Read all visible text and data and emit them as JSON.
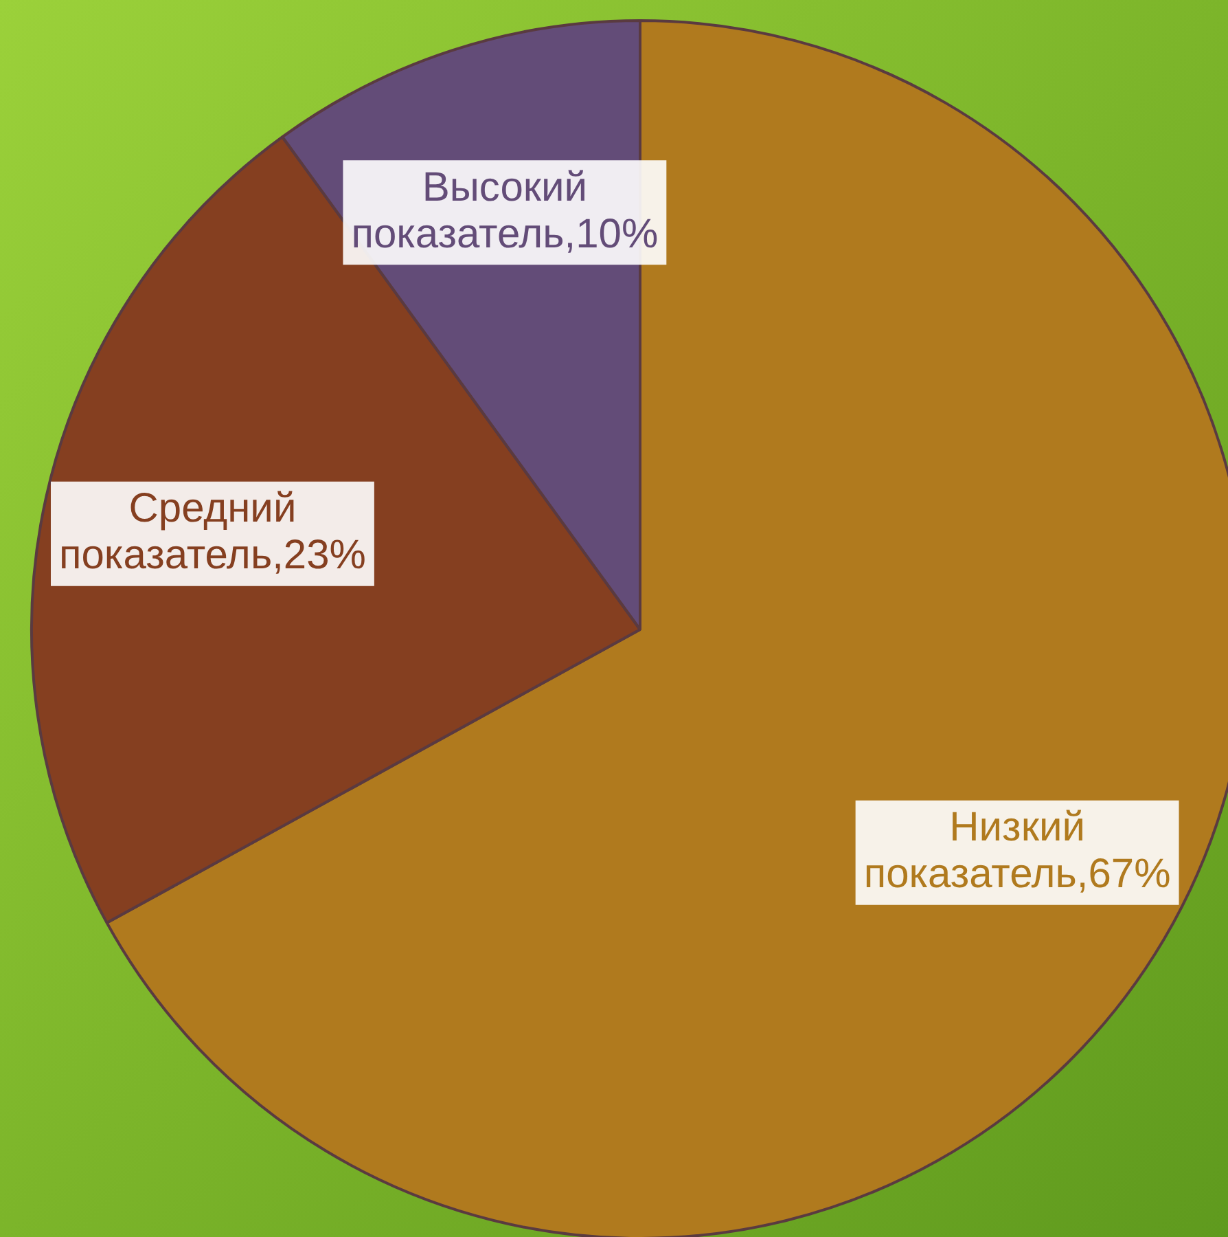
{
  "chart_data": {
    "type": "pie",
    "categories": [
      "Низкий показатель",
      "Средний показатель",
      "Высокий показатель"
    ],
    "values": [
      67,
      23,
      10
    ],
    "value_labels": [
      "67%",
      "23%",
      "10%"
    ],
    "colors": [
      "#b07a1e",
      "#853f20",
      "#634c78"
    ],
    "legend": false
  }
}
